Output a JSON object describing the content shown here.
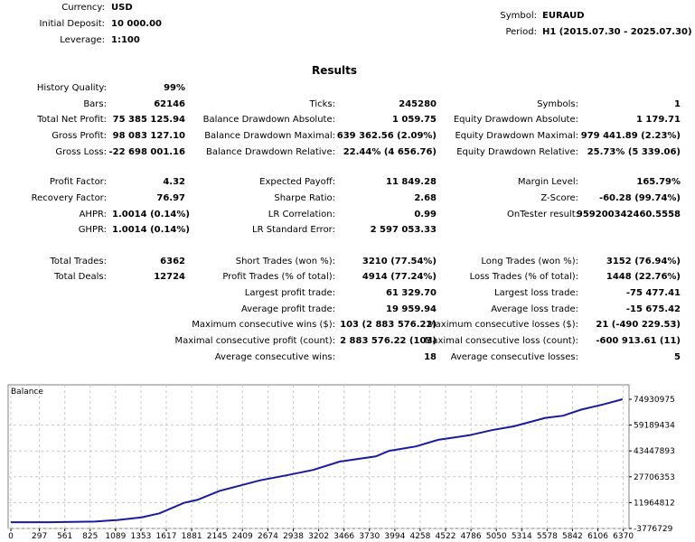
{
  "header": {
    "currency_label": "Currency:",
    "currency": "USD",
    "deposit_label": "Initial Deposit:",
    "deposit": "10 000.00",
    "leverage_label": "Leverage:",
    "leverage": "1:100",
    "symbol_label": "Symbol:",
    "symbol": "EURAUD",
    "period_label": "Period:",
    "period": "H1 (2015.07.30 - 2025.07.30)"
  },
  "results_title": "Results",
  "rows": [
    [
      [
        "History Quality:",
        "99%"
      ],
      null,
      null
    ],
    [
      [
        "Bars:",
        "62146"
      ],
      [
        "Ticks:",
        "245280"
      ],
      [
        "Symbols:",
        "1"
      ]
    ],
    [
      [
        "Total Net Profit:",
        "75 385 125.94"
      ],
      [
        "Balance Drawdown Absolute:",
        "1 059.75"
      ],
      [
        "Equity Drawdown Absolute:",
        "1 179.71"
      ]
    ],
    [
      [
        "Gross Profit:",
        "98 083 127.10"
      ],
      [
        "Balance Drawdown Maximal:",
        "639 362.56 (2.09%)"
      ],
      [
        "Equity Drawdown Maximal:",
        "979 441.89 (2.23%)"
      ]
    ],
    [
      [
        "Gross Loss:",
        "-22 698 001.16"
      ],
      [
        "Balance Drawdown Relative:",
        "22.44% (4 656.76)"
      ],
      [
        "Equity Drawdown Relative:",
        "25.73% (5 339.06)"
      ]
    ],
    [
      [
        "Profit Factor:",
        "4.32"
      ],
      [
        "Expected Payoff:",
        "11 849.28"
      ],
      [
        "Margin Level:",
        "165.79%"
      ]
    ],
    [
      [
        "Recovery Factor:",
        "76.97"
      ],
      [
        "Sharpe Ratio:",
        "2.68"
      ],
      [
        "Z-Score:",
        "-60.28 (99.74%)"
      ]
    ],
    [
      [
        "AHPR:",
        "1.0014 (0.14%)"
      ],
      [
        "LR Correlation:",
        "0.99"
      ],
      [
        "OnTester result:",
        "959200342460.5558"
      ]
    ],
    [
      [
        "GHPR:",
        "1.0014 (0.14%)"
      ],
      [
        "LR Standard Error:",
        "2 597 053.33"
      ],
      null
    ],
    [
      [
        "Total Trades:",
        "6362"
      ],
      [
        "Short Trades (won %):",
        "3210 (77.54%)"
      ],
      [
        "Long Trades (won %):",
        "3152 (76.94%)"
      ]
    ],
    [
      [
        "Total Deals:",
        "12724"
      ],
      [
        "Profit Trades (% of total):",
        "4914 (77.24%)"
      ],
      [
        "Loss Trades (% of total):",
        "1448 (22.76%)"
      ]
    ],
    [
      null,
      [
        "Largest profit trade:",
        "61 329.70"
      ],
      [
        "Largest loss trade:",
        "-75 477.41"
      ]
    ],
    [
      null,
      [
        "Average profit trade:",
        "19 959.94"
      ],
      [
        "Average loss trade:",
        "-15 675.42"
      ]
    ],
    [
      null,
      [
        "Maximum consecutive wins ($):",
        "103 (2 883 576.22)"
      ],
      [
        "Maximum consecutive losses ($):",
        "21 (-490 229.53)"
      ]
    ],
    [
      null,
      [
        "Maximal consecutive profit (count):",
        "2 883 576.22 (103)"
      ],
      [
        "Maximal consecutive loss (count):",
        "-600 913.61 (11)"
      ]
    ],
    [
      null,
      [
        "Average consecutive wins:",
        "18"
      ],
      [
        "Average consecutive losses:",
        "5"
      ]
    ]
  ],
  "chart_data": {
    "type": "line",
    "title": "Balance",
    "line_color": "#1a1aa0",
    "x_ticks": [
      "0",
      "297",
      "561",
      "825",
      "1089",
      "1353",
      "1617",
      "1881",
      "2145",
      "2409",
      "2674",
      "2938",
      "3202",
      "3466",
      "3730",
      "3994",
      "4258",
      "4522",
      "4786",
      "5050",
      "5314",
      "5578",
      "5842",
      "6106",
      "6370"
    ],
    "y_ticks": [
      "74930975",
      "59189434",
      "43447893",
      "27706353",
      "11964812",
      "-3776729"
    ],
    "ylim": [
      -3776729,
      74930975
    ],
    "xlim": [
      0,
      6430
    ],
    "series": [
      {
        "name": "Balance",
        "x": [
          0,
          400,
          872,
          1104,
          1359,
          1545,
          1800,
          1939,
          2171,
          2357,
          2589,
          2867,
          3145,
          3424,
          3795,
          3934,
          4213,
          4445,
          4770,
          5002,
          5234,
          5559,
          5745,
          5931,
          6163,
          6362
        ],
        "y": [
          10000,
          10000,
          430000,
          1340000,
          3000000,
          5400000,
          11800000,
          13600000,
          19100000,
          21900000,
          25500000,
          28600000,
          31900000,
          37000000,
          40100000,
          43500000,
          46200000,
          50200000,
          53000000,
          56100000,
          58500000,
          63600000,
          64900000,
          68600000,
          71800000,
          74930975
        ]
      }
    ]
  }
}
